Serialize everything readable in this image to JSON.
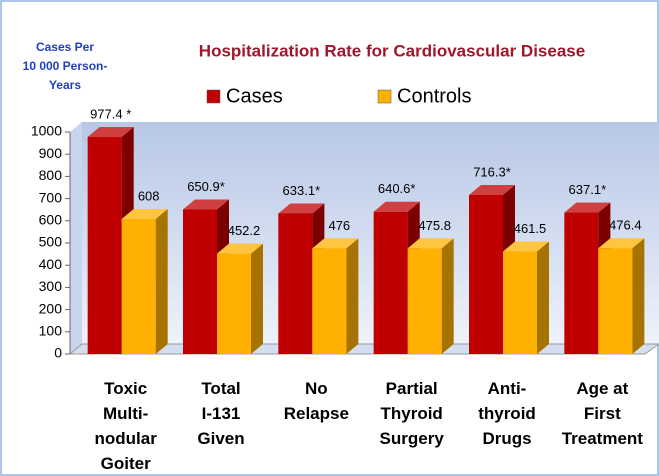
{
  "chart_data": {
    "type": "bar3d",
    "title": "Hospitalization Rate for Cardiovascular Disease",
    "y_label": "Cases Per\n10 000 Person-\nYears",
    "categories": [
      "Toxic\nMulti-\nnodular\nGoiter",
      "Total\nI-131\nGiven",
      "No\nRelapse",
      "Partial\nThyroid\nSurgery",
      "Anti-\nthyroid\nDrugs",
      "Age at\nFirst\nTreatment"
    ],
    "series": [
      {
        "name": "Cases",
        "color": "#c00000",
        "values": [
          977.4,
          650.9,
          633.1,
          640.6,
          716.3,
          637.1
        ],
        "value_labels": [
          "977.4 *",
          "650.9*",
          "633.1*",
          "640.6*",
          "716.3*",
          "637.1*"
        ]
      },
      {
        "name": "Controls",
        "color": "#ffb000",
        "values": [
          608,
          452.2,
          476,
          475.8,
          461.5,
          476.4
        ]
      }
    ],
    "ylim": [
      0,
      1000
    ],
    "yticks": [
      0,
      100,
      200,
      300,
      400,
      500,
      600,
      700,
      800,
      900,
      1000
    ],
    "legend": "top"
  }
}
